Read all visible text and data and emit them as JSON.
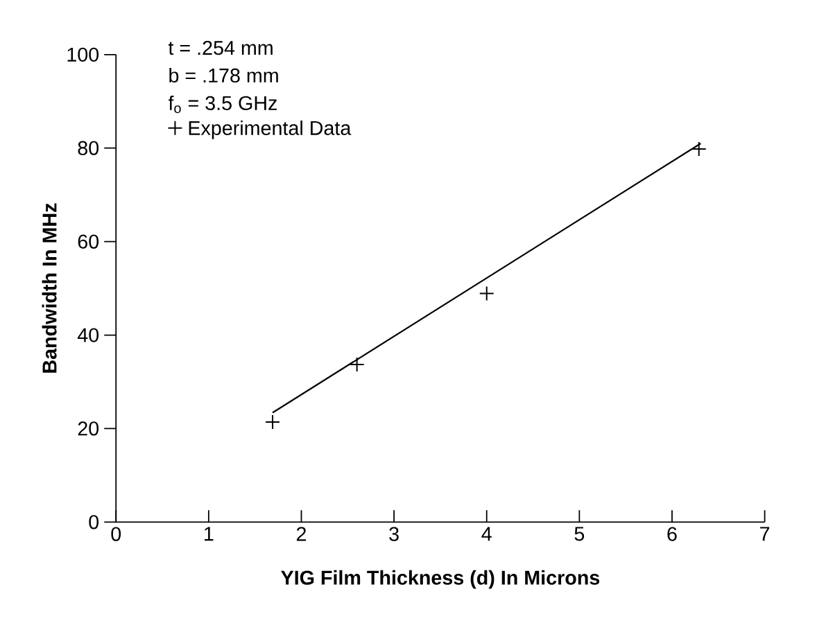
{
  "chart_data": {
    "type": "scatter",
    "xlabel": "YIG Film Thickness (d) In Microns",
    "ylabel": "Bandwidth In MHz",
    "annotations": [
      "t = .254 mm",
      "b = .178 mm",
      "f$_{o}$ = 3.5 GHz"
    ],
    "series": [
      {
        "name": "Experimental Data",
        "marker": "cross",
        "color": "#000000",
        "x": [
          1.69,
          2.6,
          4.0,
          6.29
        ],
        "values": [
          21.4,
          33.7,
          48.9,
          79.8
        ]
      },
      {
        "type": "line",
        "color": "#000000",
        "marker": "none",
        "line_style": "solid",
        "x": [
          1.69,
          6.31
        ],
        "values": [
          23.4,
          81
        ]
      }
    ],
    "xlim": [
      0,
      7
    ],
    "ylim": [
      0,
      100
    ],
    "xticks": [
      0,
      1,
      2,
      3,
      4,
      5,
      6,
      7
    ],
    "yticks": [
      0,
      20,
      40,
      60,
      80,
      100
    ],
    "legend": "top left",
    "grid": false
  }
}
